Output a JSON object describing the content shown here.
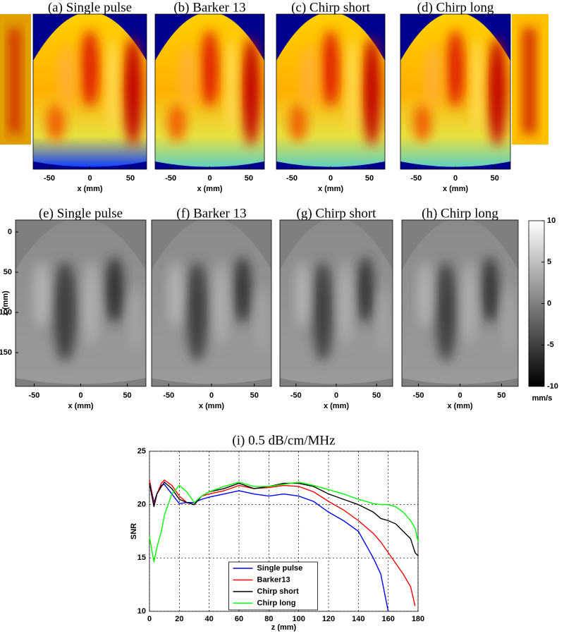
{
  "chart_data": [
    {
      "type": "heatmap",
      "title": "(a) Single pulse",
      "xlabel": "x (mm)",
      "xlim": [
        -70,
        70
      ],
      "xticks": [
        -50,
        0,
        50
      ],
      "colormap": "jet"
    },
    {
      "type": "heatmap",
      "title": "(b) Barker 13",
      "xlabel": "x (mm)",
      "xlim": [
        -70,
        70
      ],
      "xticks": [
        -50,
        0,
        50
      ],
      "colormap": "jet"
    },
    {
      "type": "heatmap",
      "title": "(c) Chirp short",
      "xlabel": "x (mm)",
      "xlim": [
        -70,
        70
      ],
      "xticks": [
        -50,
        0,
        50
      ],
      "colormap": "jet"
    },
    {
      "type": "heatmap",
      "title": "(d) Chirp long",
      "xlabel": "x (mm)",
      "xlim": [
        -70,
        70
      ],
      "xticks": [
        -50,
        0,
        50
      ],
      "colormap": "jet"
    },
    {
      "type": "heatmap",
      "title": "(e) Single pulse",
      "xlabel": "x (mm)",
      "ylabel": "z (mm)",
      "xlim": [
        -70,
        70
      ],
      "xticks": [
        -50,
        0,
        50
      ],
      "ylim": [
        -15,
        192
      ],
      "yticks": [
        0,
        50,
        100,
        150
      ],
      "y_inverted": true,
      "colormap": "gray"
    },
    {
      "type": "heatmap",
      "title": "(f) Barker 13",
      "xlabel": "x (mm)",
      "xlim": [
        -70,
        70
      ],
      "xticks": [
        -50,
        0,
        50
      ],
      "colormap": "gray"
    },
    {
      "type": "heatmap",
      "title": "(g) Chirp short",
      "xlabel": "x (mm)",
      "xlim": [
        -70,
        70
      ],
      "xticks": [
        -50,
        0,
        50
      ],
      "colormap": "gray"
    },
    {
      "type": "heatmap",
      "title": "(h) Chirp long",
      "xlabel": "x (mm)",
      "xlim": [
        -70,
        70
      ],
      "xticks": [
        -50,
        0,
        50
      ],
      "colormap": "gray"
    },
    {
      "type": "colorbar",
      "clim": [
        -10,
        10
      ],
      "ticks": [
        10,
        5,
        0,
        -5,
        -10
      ],
      "label": "mm/s",
      "colormap": "gray"
    },
    {
      "type": "line",
      "title": "(i) 0.5 dB/cm/MHz",
      "xlabel": "z (mm)",
      "ylabel": "SNR",
      "x": [
        0,
        3,
        5,
        8,
        10,
        15,
        20,
        25,
        30,
        35,
        40,
        50,
        60,
        70,
        80,
        90,
        100,
        110,
        120,
        130,
        140,
        150,
        155,
        160,
        165,
        170,
        175,
        178,
        180
      ],
      "series": [
        {
          "name": "Single pulse",
          "color": "#0000ff",
          "values": [
            22.3,
            20.2,
            21,
            21.8,
            21.9,
            21,
            20.1,
            20.2,
            20.2,
            20.5,
            20.7,
            21,
            21.3,
            21,
            20.8,
            21,
            20.8,
            20.3,
            19.3,
            18.5,
            17.5,
            15,
            13.5,
            10,
            null,
            null,
            null,
            null,
            null
          ]
        },
        {
          "name": "Barker13",
          "color": "#ff0000",
          "values": [
            22.3,
            20,
            21,
            22,
            22.3,
            21.8,
            20.8,
            20.2,
            20,
            20.8,
            21,
            21.3,
            21.8,
            21.5,
            21.6,
            21.8,
            21.7,
            21.2,
            20.3,
            19.5,
            18.5,
            17.3,
            16.5,
            15.5,
            14.5,
            13.5,
            12.3,
            10.5,
            null
          ]
        },
        {
          "name": "Chirp short",
          "color": "#000000",
          "values": [
            22,
            19.8,
            21,
            21.7,
            22.1,
            21.5,
            20.5,
            20.2,
            20,
            20.8,
            21.2,
            21.5,
            22,
            21.5,
            21.7,
            22,
            22,
            21.7,
            21,
            20.5,
            20,
            19.3,
            18.7,
            18.5,
            18.2,
            17.5,
            16.8,
            15.5,
            15.2
          ]
        },
        {
          "name": "Chirp long",
          "color": "#00ff00",
          "values": [
            17,
            14.6,
            16,
            17.5,
            19,
            21,
            21.8,
            21.2,
            20.2,
            20.8,
            21.2,
            21.7,
            22.1,
            21.7,
            21.7,
            21.9,
            22.1,
            21.8,
            21.4,
            21,
            20.5,
            20.1,
            20,
            20,
            19.8,
            19.3,
            18.5,
            17.8,
            16.5
          ]
        }
      ],
      "xlim": [
        0,
        180
      ],
      "xticks": [
        0,
        20,
        40,
        60,
        80,
        100,
        120,
        140,
        160,
        180
      ],
      "ylim": [
        10,
        25
      ],
      "yticks": [
        10,
        15,
        20,
        25
      ],
      "grid": true,
      "legend": "lower center"
    }
  ]
}
